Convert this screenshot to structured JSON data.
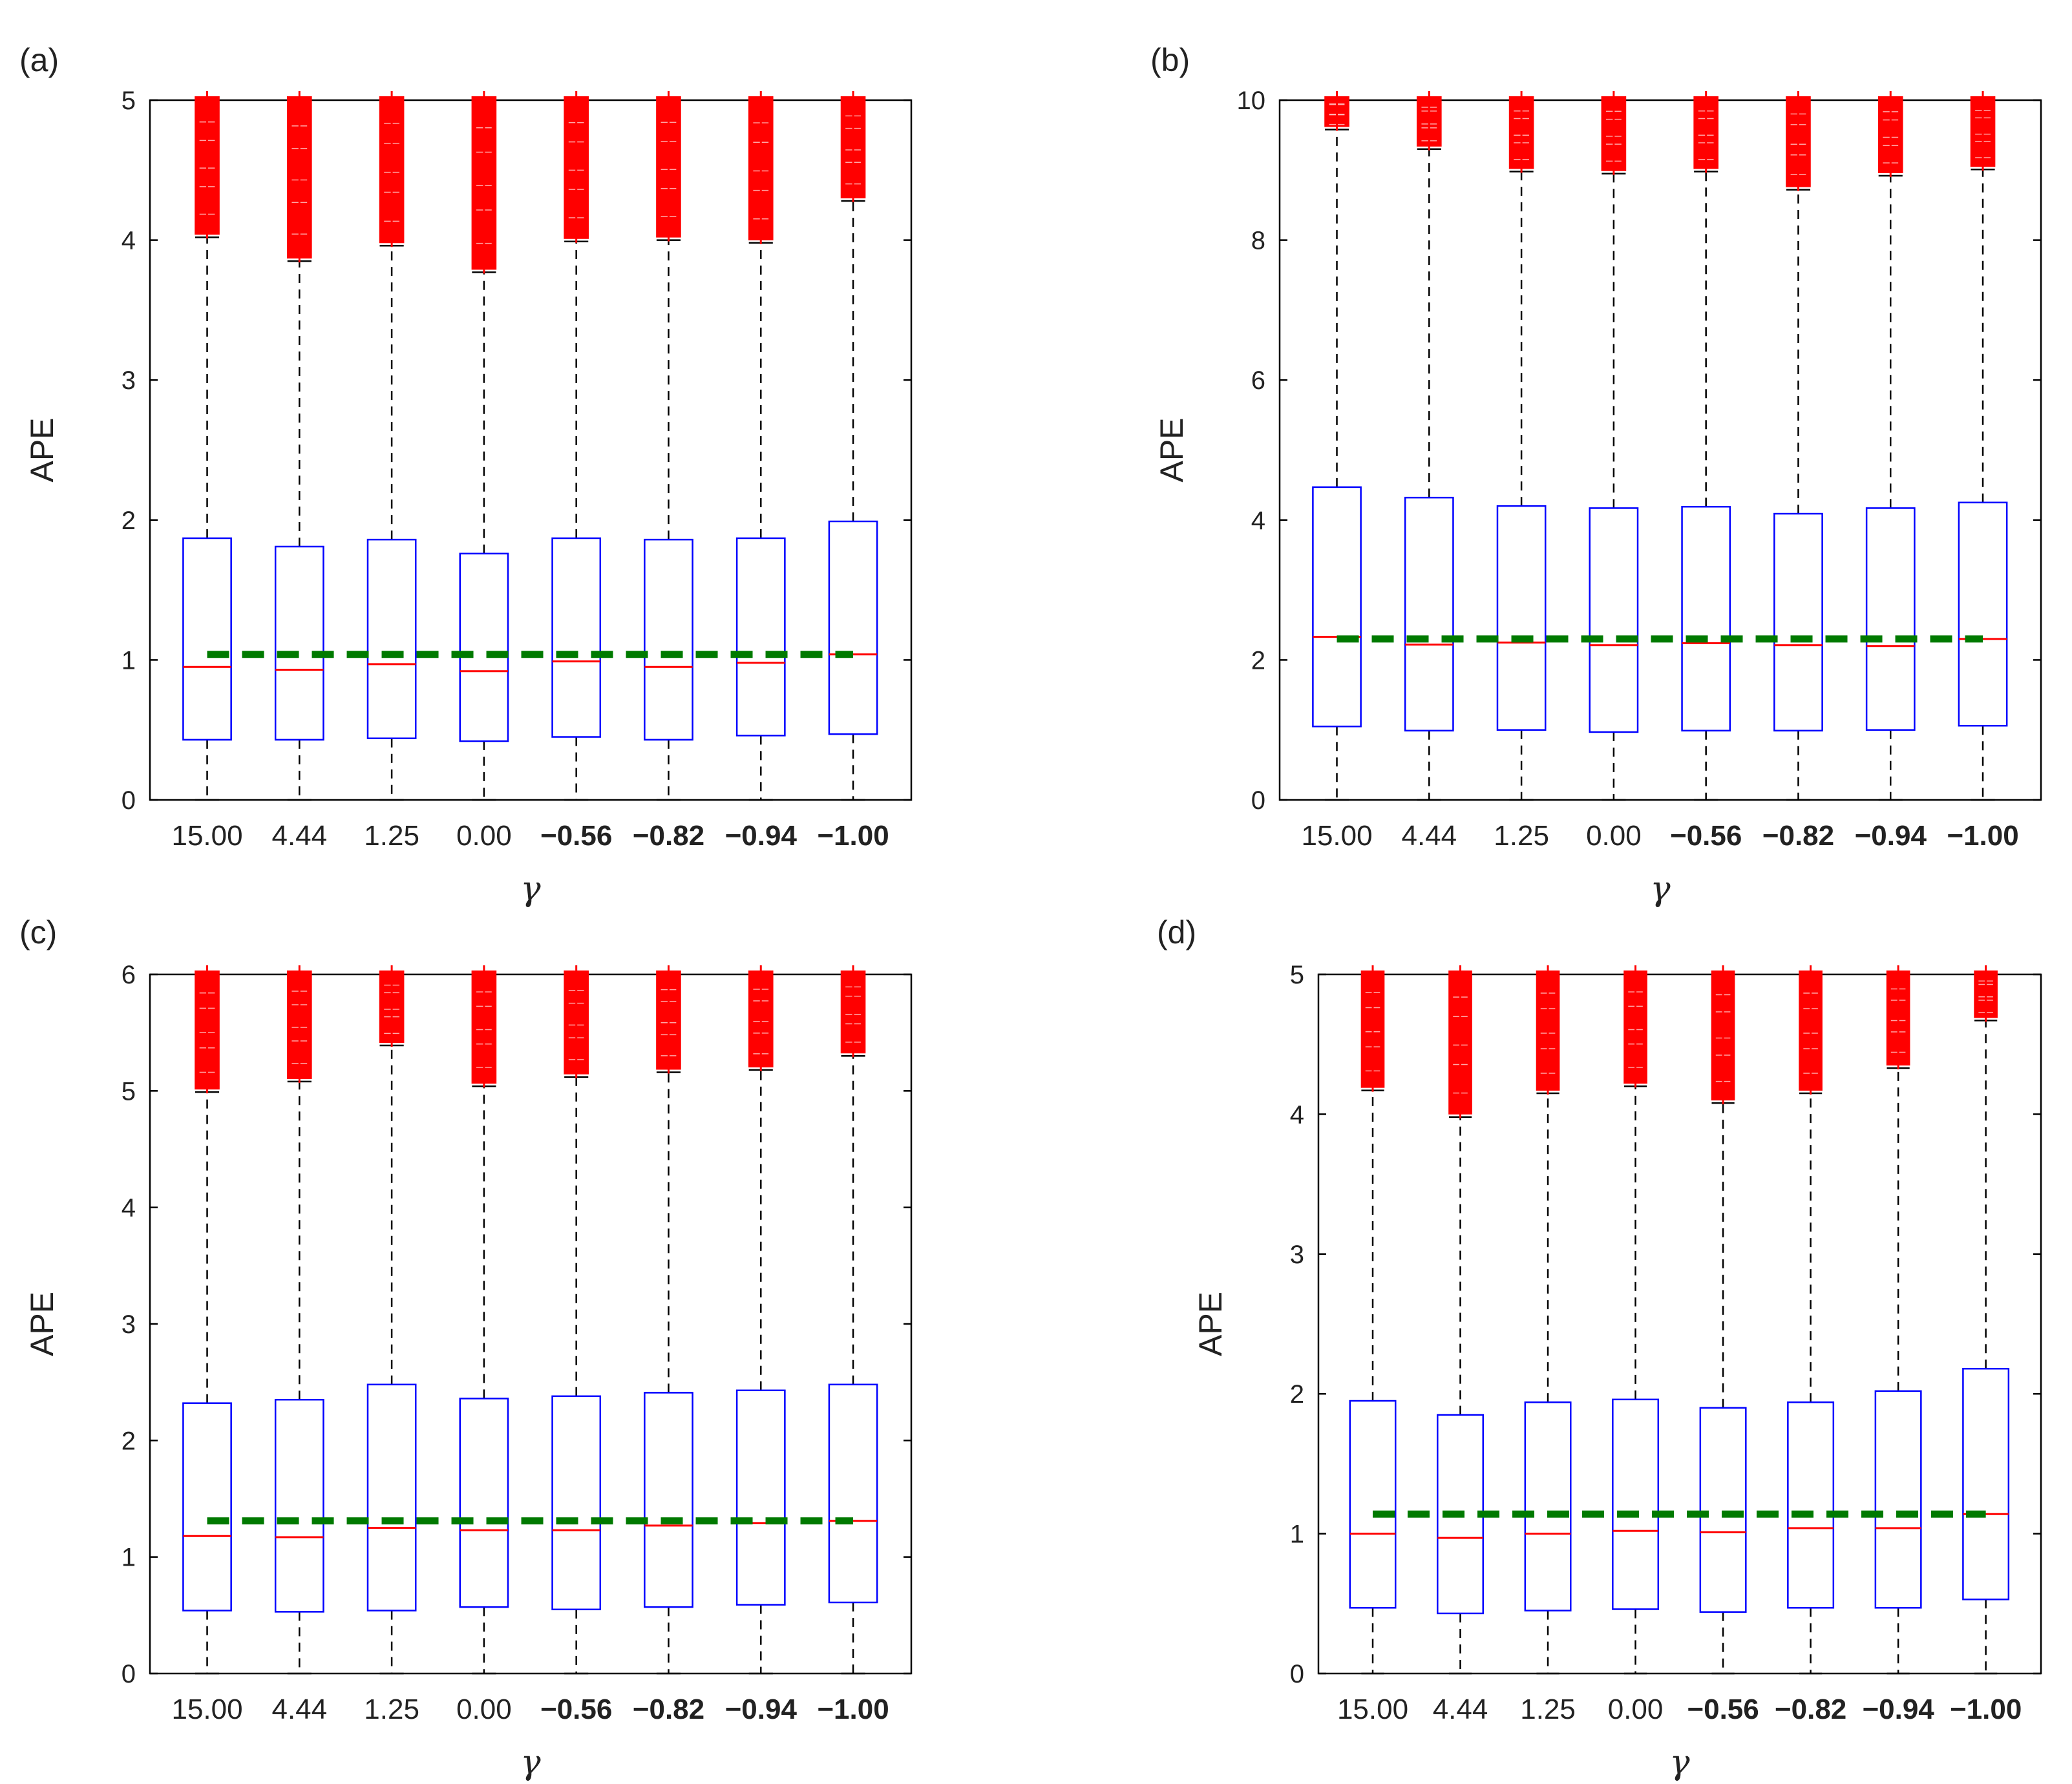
{
  "colors": {
    "box": "#0000ff",
    "median": "#ff0000",
    "outliers": "#ff0000",
    "whisker": "#000000",
    "mean_line": "#007a00",
    "axis": "#000000"
  },
  "chart_data": [
    {
      "panel": "(a)",
      "type": "box",
      "xlabel": "γ",
      "ylabel": "APE",
      "categories": [
        "15.00",
        "4.44",
        "1.25",
        "0.00",
        "-0.56",
        "-0.82",
        "-0.94",
        "-1.00"
      ],
      "ylim": [
        0,
        5
      ],
      "yticks": [
        "0",
        "1",
        "2",
        "3",
        "4",
        "5"
      ],
      "q1": [
        0.43,
        0.43,
        0.44,
        0.42,
        0.45,
        0.43,
        0.46,
        0.47
      ],
      "median": [
        0.95,
        0.93,
        0.97,
        0.92,
        0.99,
        0.95,
        0.98,
        1.04
      ],
      "q3": [
        1.87,
        1.81,
        1.86,
        1.76,
        1.87,
        1.86,
        1.87,
        1.99
      ],
      "whisker_low": [
        0,
        0,
        0,
        0,
        0,
        0,
        0,
        0
      ],
      "whisker_high": [
        4.02,
        3.85,
        3.96,
        3.77,
        3.99,
        4.0,
        3.98,
        4.28
      ],
      "outlier_max": [
        5,
        5,
        5,
        5,
        5,
        5,
        5,
        5
      ],
      "mean_line": 1.04
    },
    {
      "panel": "(b)",
      "type": "box",
      "xlabel": "γ",
      "ylabel": "APE",
      "categories": [
        "15.00",
        "4.44",
        "1.25",
        "0.00",
        "-0.56",
        "-0.82",
        "-0.94",
        "-1.00"
      ],
      "ylim": [
        0,
        10
      ],
      "yticks": [
        "0",
        "2",
        "4",
        "6",
        "8",
        "10"
      ],
      "q1": [
        1.05,
        0.99,
        1.0,
        0.97,
        0.99,
        0.99,
        1.0,
        1.06
      ],
      "median": [
        2.33,
        2.22,
        2.25,
        2.21,
        2.24,
        2.21,
        2.2,
        2.3
      ],
      "q3": [
        4.47,
        4.32,
        4.2,
        4.17,
        4.19,
        4.09,
        4.17,
        4.25
      ],
      "whisker_low": [
        0,
        0,
        0,
        0,
        0,
        0,
        0,
        0
      ],
      "whisker_high": [
        9.58,
        9.3,
        8.98,
        8.95,
        8.98,
        8.72,
        8.92,
        9.01
      ],
      "outlier_max": [
        10,
        10,
        10,
        10,
        10,
        10,
        10,
        10
      ],
      "mean_line": 2.3
    },
    {
      "panel": "(c)",
      "type": "box",
      "xlabel": "γ",
      "ylabel": "APE",
      "categories": [
        "15.00",
        "4.44",
        "1.25",
        "0.00",
        "-0.56",
        "-0.82",
        "-0.94",
        "-1.00"
      ],
      "ylim": [
        0,
        6
      ],
      "yticks": [
        "0",
        "1",
        "2",
        "3",
        "4",
        "5",
        "6"
      ],
      "q1": [
        0.54,
        0.53,
        0.54,
        0.57,
        0.55,
        0.57,
        0.59,
        0.61
      ],
      "median": [
        1.18,
        1.17,
        1.25,
        1.23,
        1.23,
        1.27,
        1.29,
        1.31
      ],
      "q3": [
        2.32,
        2.35,
        2.48,
        2.36,
        2.38,
        2.41,
        2.43,
        2.48
      ],
      "whisker_low": [
        0,
        0,
        0,
        0,
        0,
        0,
        0,
        0
      ],
      "whisker_high": [
        4.99,
        5.08,
        5.39,
        5.04,
        5.12,
        5.16,
        5.18,
        5.3
      ],
      "outlier_max": [
        6,
        6,
        6,
        6,
        6,
        6,
        6,
        6
      ],
      "mean_line": 1.31
    },
    {
      "panel": "(d)",
      "type": "box",
      "xlabel": "γ",
      "ylabel": "APE",
      "categories": [
        "15.00",
        "4.44",
        "1.25",
        "0.00",
        "-0.56",
        "-0.82",
        "-0.94",
        "-1.00"
      ],
      "ylim": [
        0,
        5
      ],
      "yticks": [
        "0",
        "1",
        "2",
        "3",
        "4",
        "5"
      ],
      "q1": [
        0.47,
        0.43,
        0.45,
        0.46,
        0.44,
        0.47,
        0.47,
        0.53
      ],
      "median": [
        1.0,
        0.97,
        1.0,
        1.02,
        1.01,
        1.04,
        1.04,
        1.14
      ],
      "q3": [
        1.95,
        1.85,
        1.94,
        1.96,
        1.9,
        1.94,
        2.02,
        2.18
      ],
      "whisker_low": [
        0,
        0,
        0,
        0,
        0,
        0,
        0,
        0
      ],
      "whisker_high": [
        4.17,
        3.98,
        4.15,
        4.2,
        4.08,
        4.15,
        4.33,
        4.67
      ],
      "outlier_max": [
        5,
        5,
        5,
        5,
        5,
        5,
        5,
        5
      ],
      "mean_line": 1.14
    }
  ]
}
